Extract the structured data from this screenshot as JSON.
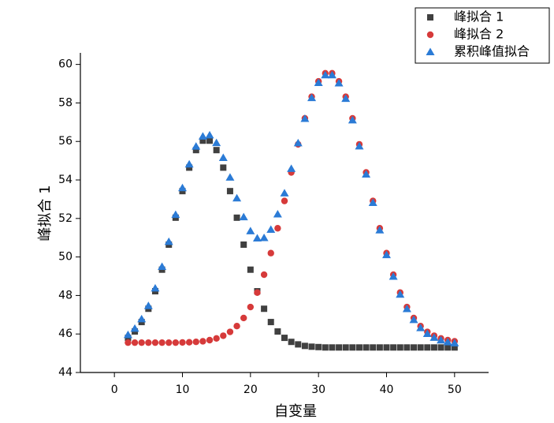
{
  "chart_data": {
    "type": "scatter",
    "x_label": "自变量",
    "y_label": "峰拟合 1",
    "x": [
      2,
      3,
      4,
      5,
      6,
      7,
      8,
      9,
      10,
      11,
      12,
      13,
      14,
      15,
      16,
      17,
      18,
      19,
      20,
      21,
      22,
      23,
      24,
      25,
      26,
      27,
      28,
      29,
      30,
      31,
      32,
      33,
      34,
      35,
      36,
      37,
      38,
      39,
      40,
      41,
      42,
      43,
      44,
      45,
      46,
      47,
      48,
      49,
      50
    ],
    "series": [
      {
        "name": "峰拟合 1",
        "color": "#404040",
        "marker": "square",
        "values": [
          45.8,
          46.13,
          46.62,
          47.31,
          48.22,
          49.34,
          50.64,
          52.04,
          53.42,
          54.64,
          55.55,
          56.04,
          56.04,
          55.55,
          54.64,
          53.42,
          52.04,
          50.64,
          49.34,
          48.22,
          47.31,
          46.62,
          46.13,
          45.8,
          45.59,
          45.46,
          45.38,
          45.34,
          45.32,
          45.3,
          45.3,
          45.3,
          45.3,
          45.3,
          45.3,
          45.3,
          45.3,
          45.3,
          45.3,
          45.3,
          45.3,
          45.3,
          45.3,
          45.3,
          45.3,
          45.3,
          45.3,
          45.3,
          45.3
        ]
      },
      {
        "name": "峰拟合 2",
        "color": "#d63a3a",
        "marker": "circle",
        "values": [
          45.55,
          45.55,
          45.55,
          45.55,
          45.55,
          45.55,
          45.55,
          45.55,
          45.56,
          45.57,
          45.59,
          45.62,
          45.68,
          45.77,
          45.91,
          46.11,
          46.41,
          46.83,
          47.4,
          48.15,
          49.08,
          50.2,
          51.49,
          52.91,
          54.39,
          55.85,
          57.2,
          58.32,
          59.12,
          59.54,
          59.54,
          59.12,
          58.32,
          57.2,
          55.85,
          54.39,
          52.91,
          51.49,
          50.2,
          49.08,
          48.15,
          47.4,
          46.83,
          46.41,
          46.11,
          45.91,
          45.77,
          45.68,
          45.62
        ]
      },
      {
        "name": "累积峰值拟合",
        "color": "#2b7bd6",
        "marker": "triangle",
        "values": [
          45.95,
          46.28,
          46.77,
          47.46,
          48.37,
          49.49,
          50.79,
          52.19,
          53.58,
          54.81,
          55.74,
          56.26,
          56.32,
          55.92,
          55.15,
          54.13,
          53.05,
          52.07,
          51.34,
          50.97,
          50.99,
          51.42,
          52.22,
          53.31,
          54.58,
          55.91,
          57.18,
          58.26,
          59.04,
          59.44,
          59.44,
          59.02,
          58.22,
          57.1,
          55.75,
          54.29,
          52.81,
          51.39,
          50.1,
          48.98,
          48.05,
          47.3,
          46.73,
          46.31,
          46.01,
          45.81,
          45.67,
          45.58,
          45.52
        ]
      }
    ],
    "xlim": [
      -5,
      55
    ],
    "xticks": [
      0,
      10,
      20,
      30,
      40,
      50
    ],
    "ylim": [
      44,
      60.6
    ],
    "yticks": [
      44,
      46,
      48,
      50,
      52,
      54,
      56,
      58,
      60
    ],
    "legend": "top-right",
    "grid": false
  }
}
